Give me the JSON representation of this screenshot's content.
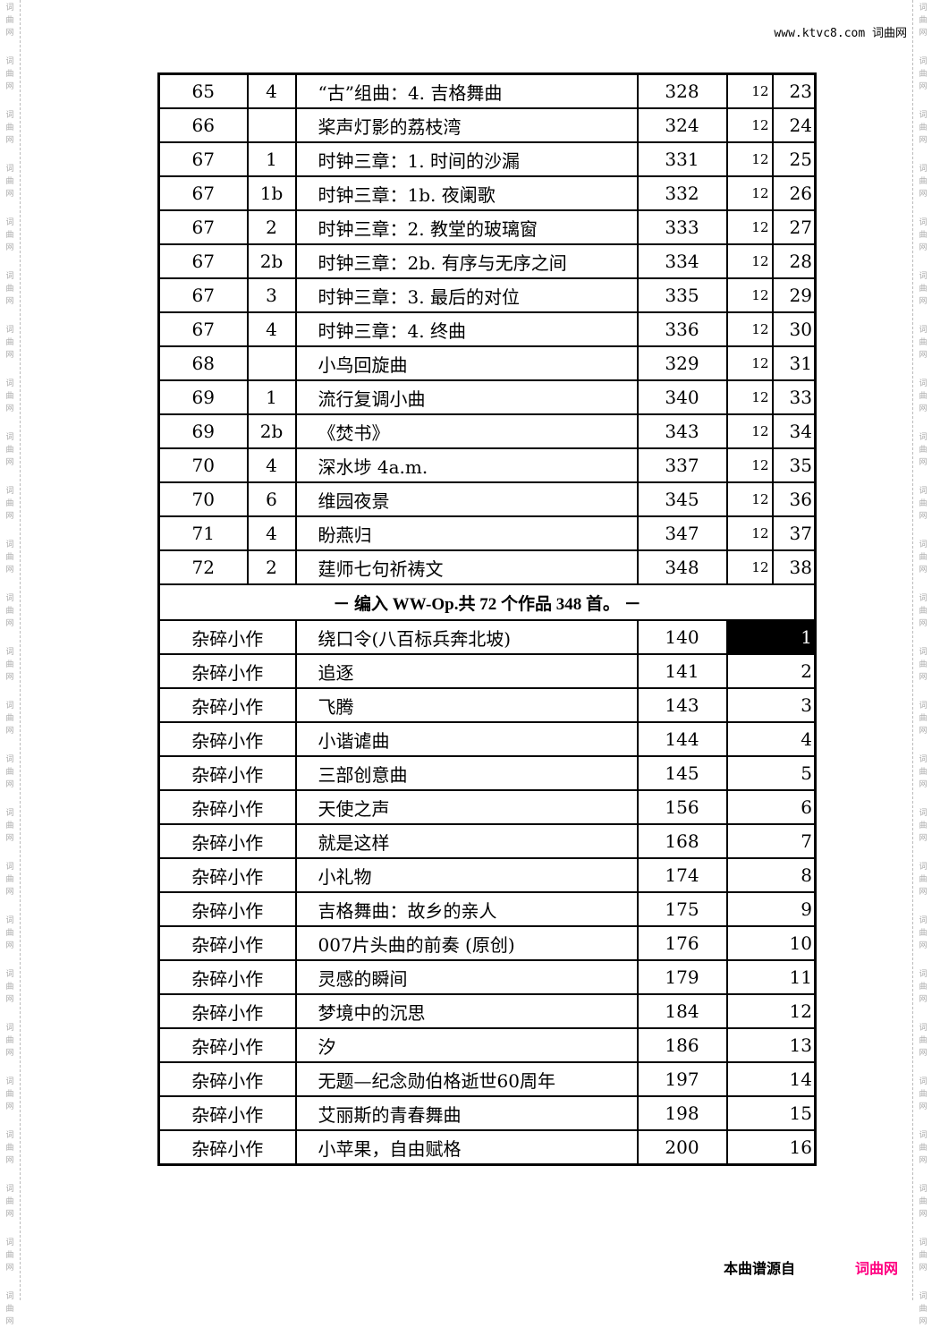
{
  "watermark_text": "词曲网",
  "header": {
    "site": "www.ktvc8.com 词曲网"
  },
  "op_rows": [
    {
      "op": "65",
      "no": "4",
      "title": "“古”组曲：4. 吉格舞曲",
      "page": "328",
      "vol": "12",
      "idx": "23"
    },
    {
      "op": "66",
      "no": "",
      "title": "桨声灯影的荔枝湾",
      "page": "324",
      "vol": "12",
      "idx": "24"
    },
    {
      "op": "67",
      "no": "1",
      "title": "时钟三章：1. 时间的沙漏",
      "page": "331",
      "vol": "12",
      "idx": "25"
    },
    {
      "op": "67",
      "no": "1b",
      "title": "时钟三章：1b. 夜阑歌",
      "page": "332",
      "vol": "12",
      "idx": "26"
    },
    {
      "op": "67",
      "no": "2",
      "title": "时钟三章：2. 教堂的玻璃窗",
      "page": "333",
      "vol": "12",
      "idx": "27"
    },
    {
      "op": "67",
      "no": "2b",
      "title": "时钟三章：2b. 有序与无序之间",
      "page": "334",
      "vol": "12",
      "idx": "28"
    },
    {
      "op": "67",
      "no": "3",
      "title": "时钟三章：3. 最后的对位",
      "page": "335",
      "vol": "12",
      "idx": "29"
    },
    {
      "op": "67",
      "no": "4",
      "title": "时钟三章：4. 终曲",
      "page": "336",
      "vol": "12",
      "idx": "30"
    },
    {
      "op": "68",
      "no": "",
      "title": "小鸟回旋曲",
      "page": "329",
      "vol": "12",
      "idx": "31"
    },
    {
      "op": "69",
      "no": "1",
      "title": "流行复调小曲",
      "page": "340",
      "vol": "12",
      "idx": "33"
    },
    {
      "op": "69",
      "no": "2b",
      "title": "《焚书》",
      "page": "343",
      "vol": "12",
      "idx": "34"
    },
    {
      "op": "70",
      "no": "4",
      "title": "深水埗 4a.m.",
      "page": "337",
      "vol": "12",
      "idx": "35"
    },
    {
      "op": "70",
      "no": "6",
      "title": "维园夜景",
      "page": "345",
      "vol": "12",
      "idx": "36"
    },
    {
      "op": "71",
      "no": "4",
      "title": "盼燕归",
      "page": "347",
      "vol": "12",
      "idx": "37"
    },
    {
      "op": "72",
      "no": "2",
      "title": "莛师七句祈祷文",
      "page": "348",
      "vol": "12",
      "idx": "38"
    }
  ],
  "separator": "－ 编入 WW-Op.共 72 个作品 348 首。 －",
  "misc_rows": [
    {
      "cat": "杂碎小作",
      "title": "绕口令(八百标兵奔北坡)",
      "page": "140",
      "idx": "1",
      "highlight": true
    },
    {
      "cat": "杂碎小作",
      "title": "追逐",
      "page": "141",
      "idx": "2"
    },
    {
      "cat": "杂碎小作",
      "title": "飞腾",
      "page": "143",
      "idx": "3"
    },
    {
      "cat": "杂碎小作",
      "title": "小谐谑曲",
      "page": "144",
      "idx": "4"
    },
    {
      "cat": "杂碎小作",
      "title": "三部创意曲",
      "page": "145",
      "idx": "5"
    },
    {
      "cat": "杂碎小作",
      "title": "天使之声",
      "page": "156",
      "idx": "6"
    },
    {
      "cat": "杂碎小作",
      "title": "就是这样",
      "page": "168",
      "idx": "7"
    },
    {
      "cat": "杂碎小作",
      "title": "小礼物",
      "page": "174",
      "idx": "8"
    },
    {
      "cat": "杂碎小作",
      "title": "吉格舞曲：故乡的亲人",
      "page": "175",
      "idx": "9"
    },
    {
      "cat": "杂碎小作",
      "title": "007片头曲的前奏 (原创)",
      "page": "176",
      "idx": "10"
    },
    {
      "cat": "杂碎小作",
      "title": "灵感的瞬间",
      "page": "179",
      "idx": "11"
    },
    {
      "cat": "杂碎小作",
      "title": "梦境中的沉思",
      "page": "184",
      "idx": "12"
    },
    {
      "cat": "杂碎小作",
      "title": "汐",
      "page": "186",
      "idx": "13"
    },
    {
      "cat": "杂碎小作",
      "title": "无题—纪念勋伯格逝世60周年",
      "page": "197",
      "idx": "14"
    },
    {
      "cat": "杂碎小作",
      "title": "艾丽斯的青春舞曲",
      "page": "198",
      "idx": "15"
    },
    {
      "cat": "杂碎小作",
      "title": "小苹果，自由赋格",
      "page": "200",
      "idx": "16"
    }
  ],
  "footer": {
    "source_label": "本曲谱源自",
    "brand": "词曲网",
    "brand_color": "#ff0080"
  }
}
